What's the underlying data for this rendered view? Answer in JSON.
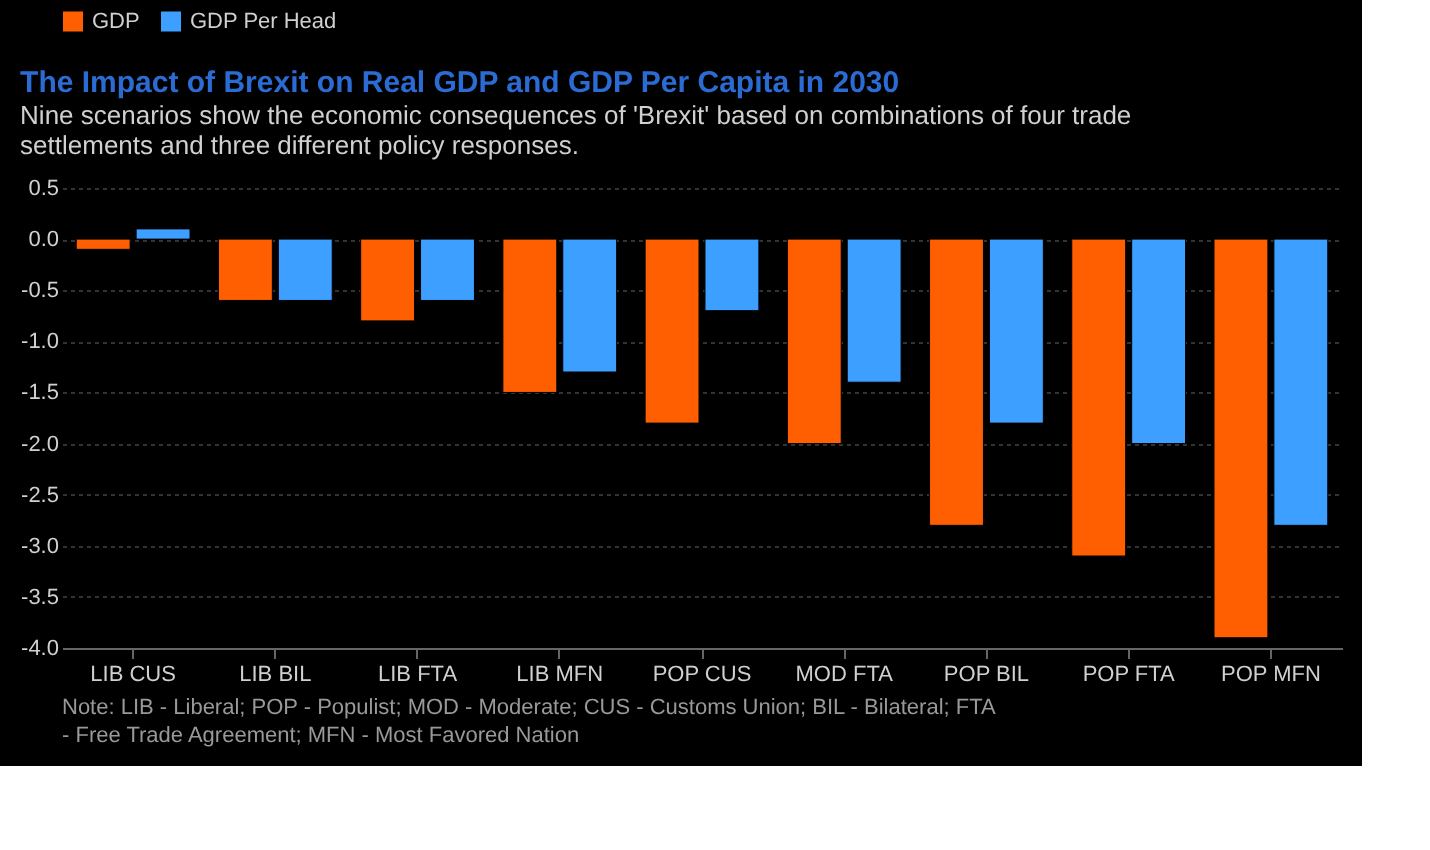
{
  "chart_data": {
    "type": "bar",
    "title": "The Impact of Brexit on Real GDP and GDP Per Capita in 2030",
    "subtitle": "Nine scenarios show the economic consequences of 'Brexit' based on combinations of four trade settlements and three different policy responses.",
    "categories": [
      "LIB CUS",
      "LIB BIL",
      "LIB FTA",
      "LIB MFN",
      "POP CUS",
      "MOD FTA",
      "POP BIL",
      "POP FTA",
      "POP MFN"
    ],
    "series": [
      {
        "name": "GDP",
        "color": "#ff5f00",
        "values": [
          -0.1,
          -0.6,
          -0.8,
          -1.5,
          -1.8,
          -2.0,
          -2.8,
          -3.1,
          -3.9
        ]
      },
      {
        "name": "GDP Per Head",
        "color": "#3d9fff",
        "values": [
          0.1,
          -0.6,
          -0.6,
          -1.3,
          -0.7,
          -1.4,
          -1.8,
          -2.0,
          -2.8
        ]
      }
    ],
    "ylim": [
      -4.0,
      0.5
    ],
    "yticks": [
      {
        "value": -4,
        "label": "-4.0"
      },
      {
        "value": -3.5,
        "label": "-3.5"
      },
      {
        "value": -3,
        "label": "-3.0"
      },
      {
        "value": -2.5,
        "label": "-2.5"
      },
      {
        "value": -2,
        "label": "-2.0"
      },
      {
        "value": -1.5,
        "label": "-1.5"
      },
      {
        "value": -1,
        "label": "-1.0"
      },
      {
        "value": -0.5,
        "label": "-0.5"
      },
      {
        "value": 0,
        "label": "0.0"
      },
      {
        "value": 0.5,
        "label": "0.5"
      }
    ],
    "grid": "y",
    "legend": "top left",
    "annotations": [
      "Note: LIB - Liberal; POP - Populist; MOD - Moderate; CUS - Customs Union; BIL - Bilateral; FTA - Free Trade Agreement; MFN - Most Favored Nation"
    ]
  }
}
